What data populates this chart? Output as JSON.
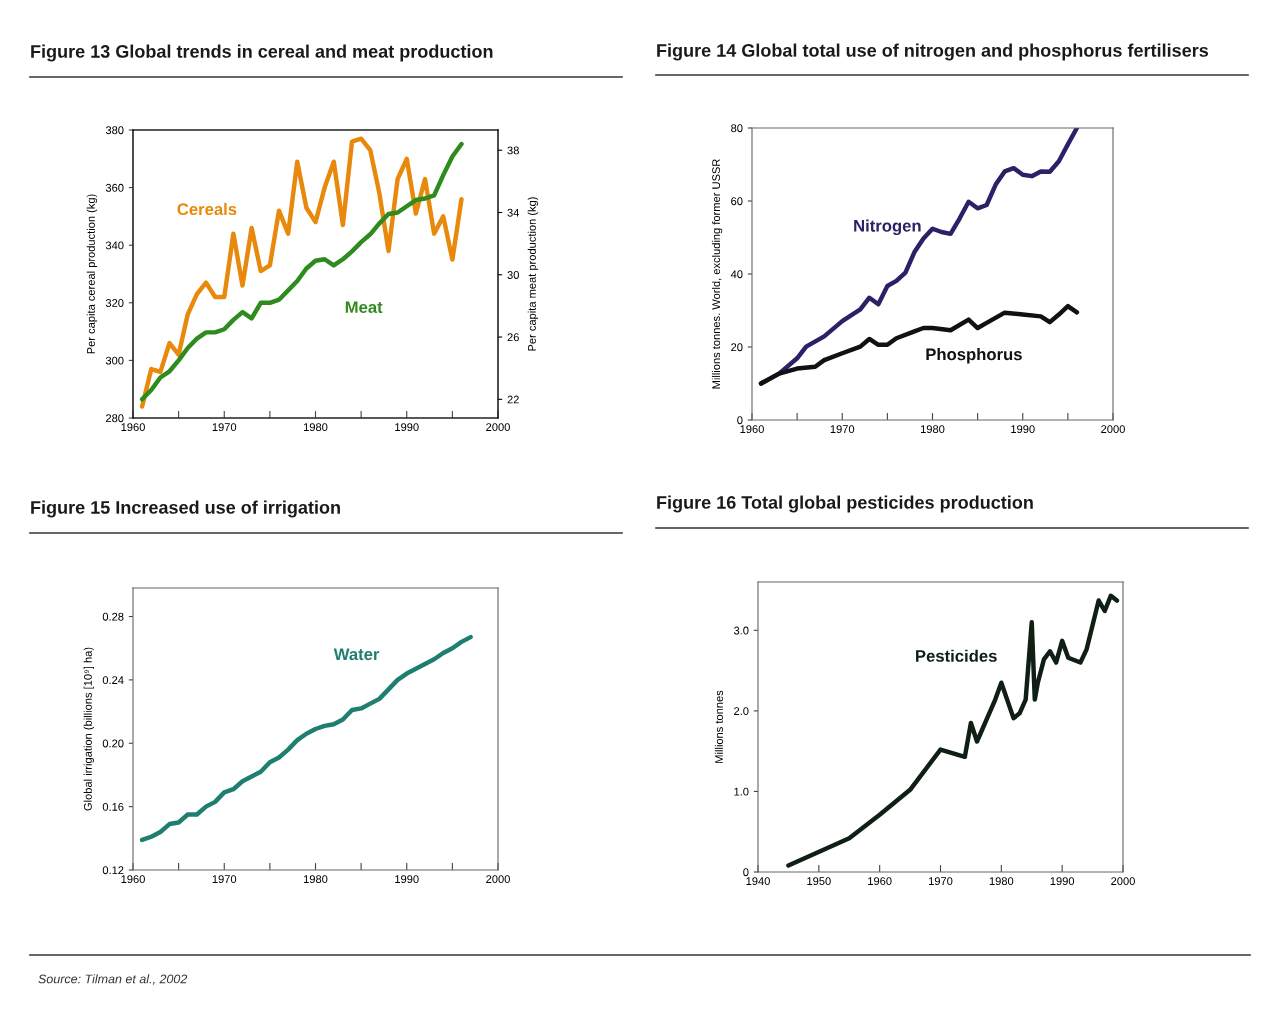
{
  "chart_data": [
    {
      "type": "line",
      "title": "Figure 13 Global trends in cereal and meat production",
      "ylabel": "Per capita cereal production (kg)",
      "y2label": "Per capita meat production (kg)",
      "xlim": [
        1960,
        2000
      ],
      "xticks": [
        1960,
        {
          "value": 1965,
          "label": null
        },
        1970,
        {
          "value": 1975,
          "label": null
        },
        1980,
        {
          "value": 1985,
          "label": null
        },
        1990,
        {
          "value": 1995,
          "label": null
        },
        2000
      ],
      "ylim": [
        280,
        380
      ],
      "yticks": [
        280,
        300,
        320,
        340,
        360,
        380
      ],
      "y2lim": [
        20.8,
        39.3
      ],
      "y2ticks": [
        22,
        26,
        30,
        34,
        38
      ],
      "grid": false,
      "legend": false,
      "x": [
        1961,
        1962,
        1963,
        1964,
        1965,
        1966,
        1967,
        1968,
        1969,
        1970,
        1971,
        1972,
        1973,
        1974,
        1975,
        1976,
        1977,
        1978,
        1979,
        1980,
        1981,
        1982,
        1983,
        1984,
        1985,
        1986,
        1987,
        1988,
        1989,
        1990,
        1991,
        1992,
        1993,
        1994,
        1995,
        1996
      ],
      "series": [
        {
          "name": "Cereals",
          "color": "#e8890c",
          "values": [
            284,
            297,
            296,
            306,
            302,
            316,
            323,
            327,
            322,
            322,
            344,
            326,
            346,
            331,
            333,
            352,
            344,
            369,
            353,
            348,
            360,
            369,
            347,
            376,
            377,
            373,
            358,
            338,
            363,
            370,
            351,
            363,
            344,
            350,
            335,
            356
          ]
        },
        {
          "name": "Meat",
          "color": "#2e8b1e",
          "axis": "y2",
          "values": [
            22.0,
            22.6,
            23.4,
            23.8,
            24.5,
            25.3,
            25.9,
            26.3,
            26.3,
            26.5,
            27.1,
            27.6,
            27.2,
            28.2,
            28.2,
            28.4,
            29.0,
            29.6,
            30.4,
            30.9,
            31.0,
            30.6,
            31.0,
            31.5,
            32.1,
            32.6,
            33.3,
            33.9,
            34.0,
            34.4,
            34.8,
            34.9,
            35.1,
            36.4,
            37.6,
            38.4
          ]
        }
      ]
    },
    {
      "type": "line",
      "title": "Figure 14 Global total use of nitrogen and phosphorus fertilisers",
      "ylabel": "Millions tonnes. World, excluding former USSR",
      "xlim": [
        1960,
        2000
      ],
      "xticks": [
        1960,
        {
          "value": 1965,
          "label": null
        },
        1970,
        {
          "value": 1975,
          "label": null
        },
        1980,
        {
          "value": 1985,
          "label": null
        },
        1990,
        {
          "value": 1995,
          "label": null
        },
        2000
      ],
      "ylim": [
        0,
        80
      ],
      "yticks": [
        0,
        20,
        40,
        60,
        80
      ],
      "grid": false,
      "legend": false,
      "series": [
        {
          "name": "Nitrogen",
          "color": "#2a2266",
          "x": [
            1961,
            1963,
            1965,
            1966,
            1968,
            1970,
            1972,
            1973,
            1974,
            1975,
            1976,
            1977,
            1978,
            1979,
            1980,
            1981,
            1982,
            1983,
            1984,
            1985,
            1986,
            1987,
            1988,
            1989,
            1990,
            1991,
            1992,
            1993,
            1994,
            1995,
            1996
          ],
          "values": [
            10.0,
            12.7,
            16.9,
            20.1,
            22.9,
            27.1,
            30.3,
            33.5,
            31.7,
            36.7,
            38.1,
            40.4,
            46.0,
            49.7,
            52.4,
            51.5,
            51.0,
            55.2,
            59.8,
            58.0,
            58.9,
            64.5,
            68.1,
            69.0,
            67.2,
            66.8,
            68.1,
            68.0,
            70.9,
            75.5,
            80.0
          ]
        },
        {
          "name": "Phosphorus",
          "color": "#111111",
          "x": [
            1961,
            1963,
            1965,
            1967,
            1968,
            1970,
            1972,
            1973,
            1974,
            1975,
            1976,
            1978,
            1979,
            1980,
            1982,
            1984,
            1985,
            1986,
            1988,
            1990,
            1992,
            1993,
            1994,
            1995,
            1996
          ],
          "values": [
            10.0,
            12.7,
            14.1,
            14.6,
            16.4,
            18.3,
            20.1,
            22.2,
            20.6,
            20.6,
            22.4,
            24.3,
            25.2,
            25.2,
            24.6,
            27.5,
            25.2,
            26.6,
            29.4,
            28.9,
            28.4,
            26.8,
            28.9,
            31.2,
            29.5
          ]
        }
      ]
    },
    {
      "type": "line",
      "title": "Figure 15 Increased use of irrigation",
      "ylabel": "Global irrigation (billions [10⁹] ha)",
      "xlim": [
        1960,
        2000
      ],
      "xticks": [
        1960,
        {
          "value": 1965,
          "label": null
        },
        1970,
        {
          "value": 1975,
          "label": null
        },
        1980,
        {
          "value": 1985,
          "label": null
        },
        1990,
        {
          "value": 1995,
          "label": null
        },
        2000
      ],
      "ylim": [
        0.12,
        0.298
      ],
      "yticks": [
        {
          "value": 0.12,
          "label": "0.12"
        },
        {
          "value": 0.16,
          "label": "0.16"
        },
        {
          "value": 0.2,
          "label": "0.20"
        },
        {
          "value": 0.24,
          "label": "0.24"
        },
        {
          "value": 0.28,
          "label": "0.28"
        }
      ],
      "grid": false,
      "legend": false,
      "x": [
        1961,
        1962,
        1963,
        1964,
        1965,
        1966,
        1967,
        1968,
        1969,
        1970,
        1971,
        1972,
        1973,
        1974,
        1975,
        1976,
        1977,
        1978,
        1979,
        1980,
        1981,
        1982,
        1983,
        1984,
        1985,
        1986,
        1987,
        1988,
        1989,
        1990,
        1991,
        1992,
        1993,
        1994,
        1995,
        1996,
        1997
      ],
      "series": [
        {
          "name": "Water",
          "color": "#1f7f6e",
          "values": [
            0.139,
            0.141,
            0.144,
            0.149,
            0.15,
            0.155,
            0.155,
            0.16,
            0.163,
            0.169,
            0.171,
            0.176,
            0.179,
            0.182,
            0.188,
            0.191,
            0.196,
            0.202,
            0.206,
            0.209,
            0.211,
            0.212,
            0.215,
            0.221,
            0.222,
            0.225,
            0.228,
            0.234,
            0.24,
            0.244,
            0.247,
            0.25,
            0.253,
            0.257,
            0.26,
            0.264,
            0.267
          ]
        }
      ]
    },
    {
      "type": "line",
      "title": "Figure 16 Total global pesticides production",
      "ylabel": "Millions tonnes",
      "xlim": [
        1940,
        2000
      ],
      "xticks": [
        1940,
        1950,
        1960,
        1970,
        1980,
        1990,
        2000
      ],
      "ylim": [
        0,
        3.6
      ],
      "yticks": [
        0,
        {
          "value": 1.0,
          "label": "1.0"
        },
        {
          "value": 2.0,
          "label": "2.0"
        },
        {
          "value": 3.0,
          "label": "3.0"
        }
      ],
      "grid": false,
      "legend": false,
      "annotations": [
        "Source: Tilman et al., 2002"
      ],
      "series": [
        {
          "name": "Pesticides",
          "color": "#0f1f14",
          "x": [
            1945,
            1955,
            1960,
            1965,
            1970,
            1974,
            1975,
            1976,
            1979,
            1980,
            1982,
            1983,
            1984,
            1985,
            1985.5,
            1986,
            1987,
            1988,
            1989,
            1990,
            1991,
            1993,
            1994,
            1996,
            1997,
            1998,
            1999
          ],
          "values": [
            0.08,
            0.42,
            0.71,
            1.02,
            1.52,
            1.43,
            1.85,
            1.62,
            2.14,
            2.35,
            1.91,
            1.97,
            2.14,
            3.1,
            2.14,
            2.35,
            2.64,
            2.74,
            2.6,
            2.87,
            2.66,
            2.6,
            2.76,
            3.37,
            3.24,
            3.43,
            3.37
          ]
        }
      ]
    }
  ]
}
